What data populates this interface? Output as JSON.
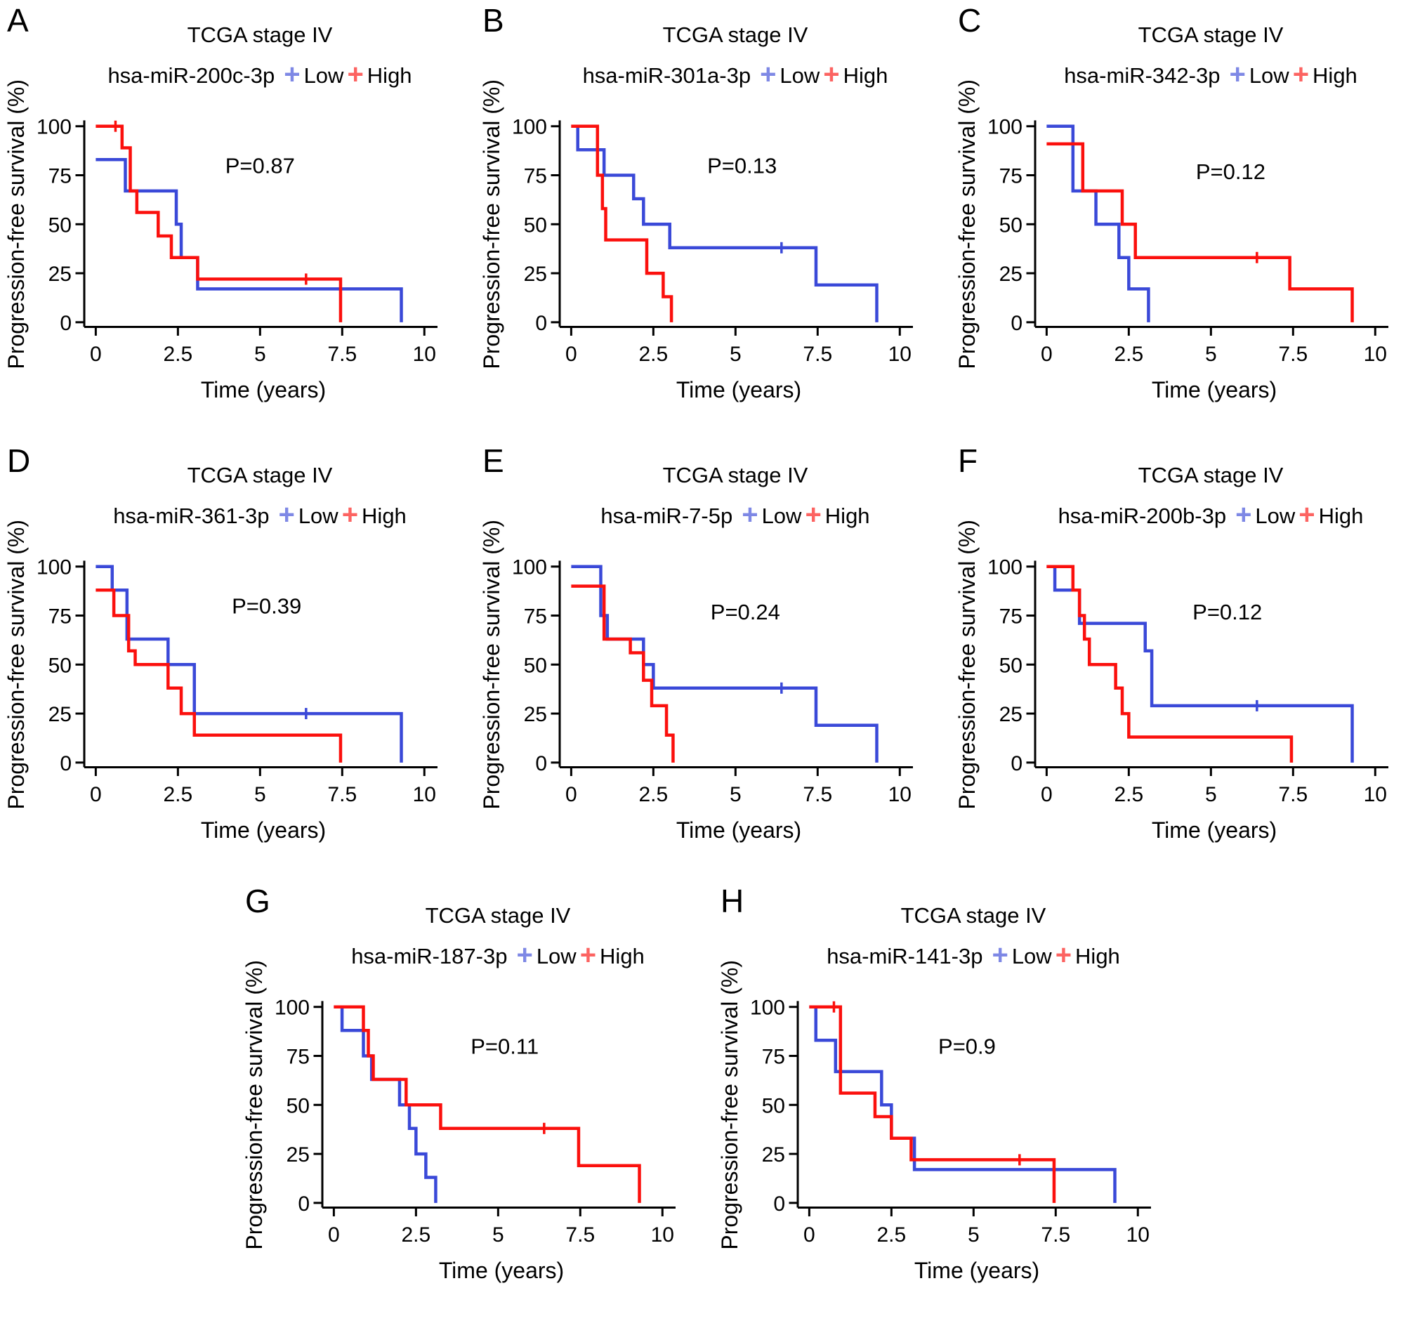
{
  "figure": {
    "ylabel": "Progression-free survival (%)",
    "xlabel": "Time (years)",
    "legend": {
      "low_label": "Low",
      "high_label": "High",
      "marker_glyph": "+",
      "position": "top"
    },
    "colors": {
      "low": "#3a49d8",
      "high": "#fb100d",
      "axis": "#000000"
    },
    "x_ticks": [
      "0",
      "2.5",
      "5",
      "7.5",
      "10"
    ],
    "y_ticks": [
      "0",
      "25",
      "50",
      "75",
      "100"
    ],
    "x_range": [
      0,
      10
    ],
    "y_range": [
      0,
      100
    ],
    "grid": false
  },
  "chart_data": [
    {
      "panel": "A",
      "type": "line",
      "title": "TCGA stage IV",
      "gene": "hsa-miR-200c-3p",
      "p_label": "P=0.87",
      "p_pos": [
        5.0,
        76
      ],
      "series": [
        {
          "name": "Low",
          "color_key": "low",
          "steps": [
            [
              0,
              83
            ],
            [
              0.9,
              67
            ],
            [
              2.45,
              50
            ],
            [
              2.6,
              33
            ],
            [
              3.1,
              17
            ],
            [
              9.3,
              0
            ]
          ],
          "censors": []
        },
        {
          "name": "High",
          "color_key": "high",
          "steps": [
            [
              0,
              100
            ],
            [
              0.8,
              89
            ],
            [
              1.05,
              67
            ],
            [
              1.25,
              56
            ],
            [
              1.9,
              44
            ],
            [
              2.3,
              33
            ],
            [
              3.1,
              22
            ],
            [
              7.45,
              0
            ]
          ],
          "censors": [
            [
              0.6,
              100
            ],
            [
              6.4,
              22
            ]
          ]
        }
      ]
    },
    {
      "panel": "B",
      "type": "line",
      "title": "TCGA stage IV",
      "gene": "hsa-miR-301a-3p",
      "p_label": "P=0.13",
      "p_pos": [
        5.2,
        76
      ],
      "series": [
        {
          "name": "Low",
          "color_key": "low",
          "steps": [
            [
              0,
              100
            ],
            [
              0.2,
              88
            ],
            [
              1.0,
              75
            ],
            [
              1.9,
              63
            ],
            [
              2.2,
              50
            ],
            [
              3.0,
              38
            ],
            [
              7.45,
              19
            ],
            [
              9.3,
              0
            ]
          ],
          "censors": [
            [
              6.4,
              38
            ]
          ]
        },
        {
          "name": "High",
          "color_key": "high",
          "steps": [
            [
              0,
              100
            ],
            [
              0.8,
              75
            ],
            [
              0.95,
              58
            ],
            [
              1.05,
              42
            ],
            [
              2.3,
              25
            ],
            [
              2.8,
              13
            ],
            [
              3.05,
              0
            ]
          ],
          "censors": []
        }
      ]
    },
    {
      "panel": "C",
      "type": "line",
      "title": "TCGA stage IV",
      "gene": "hsa-miR-342-3p",
      "p_label": "P=0.12",
      "p_pos": [
        5.6,
        73
      ],
      "series": [
        {
          "name": "Low",
          "color_key": "low",
          "steps": [
            [
              0,
              100
            ],
            [
              0.8,
              67
            ],
            [
              1.5,
              50
            ],
            [
              2.2,
              33
            ],
            [
              2.5,
              17
            ],
            [
              3.1,
              0
            ]
          ],
          "censors": []
        },
        {
          "name": "High",
          "color_key": "high",
          "steps": [
            [
              0,
              91
            ],
            [
              1.1,
              67
            ],
            [
              2.3,
              50
            ],
            [
              2.7,
              33
            ],
            [
              7.4,
              17
            ],
            [
              9.3,
              0
            ]
          ],
          "censors": [
            [
              6.4,
              33
            ]
          ]
        }
      ]
    },
    {
      "panel": "D",
      "type": "line",
      "title": "TCGA stage IV",
      "gene": "hsa-miR-361-3p",
      "p_label": "P=0.39",
      "p_pos": [
        5.2,
        76
      ],
      "series": [
        {
          "name": "Low",
          "color_key": "low",
          "steps": [
            [
              0,
              100
            ],
            [
              0.5,
              88
            ],
            [
              0.95,
              63
            ],
            [
              2.2,
              50
            ],
            [
              3.0,
              25
            ],
            [
              9.3,
              0
            ]
          ],
          "censors": [
            [
              6.4,
              25
            ]
          ]
        },
        {
          "name": "High",
          "color_key": "high",
          "steps": [
            [
              0,
              88
            ],
            [
              0.55,
              75
            ],
            [
              1.0,
              57
            ],
            [
              1.2,
              50
            ],
            [
              2.2,
              38
            ],
            [
              2.6,
              25
            ],
            [
              3.0,
              14
            ],
            [
              7.45,
              0
            ]
          ],
          "censors": []
        }
      ]
    },
    {
      "panel": "E",
      "type": "line",
      "title": "TCGA stage IV",
      "gene": "hsa-miR-7-5p",
      "p_label": "P=0.24",
      "p_pos": [
        5.3,
        73
      ],
      "series": [
        {
          "name": "Low",
          "color_key": "low",
          "steps": [
            [
              0,
              100
            ],
            [
              0.9,
              75
            ],
            [
              1.1,
              63
            ],
            [
              2.2,
              50
            ],
            [
              2.5,
              38
            ],
            [
              7.45,
              19
            ],
            [
              9.3,
              0
            ]
          ],
          "censors": [
            [
              6.4,
              38
            ]
          ]
        },
        {
          "name": "High",
          "color_key": "high",
          "steps": [
            [
              0,
              90
            ],
            [
              1.0,
              63
            ],
            [
              1.8,
              56
            ],
            [
              2.2,
              42
            ],
            [
              2.45,
              29
            ],
            [
              2.9,
              14
            ],
            [
              3.1,
              0
            ]
          ],
          "censors": []
        }
      ]
    },
    {
      "panel": "F",
      "type": "line",
      "title": "TCGA stage IV",
      "gene": "hsa-miR-200b-3p",
      "p_label": "P=0.12",
      "p_pos": [
        5.5,
        73
      ],
      "series": [
        {
          "name": "Low",
          "color_key": "low",
          "steps": [
            [
              0,
              100
            ],
            [
              0.25,
              88
            ],
            [
              1.0,
              71
            ],
            [
              3.0,
              57
            ],
            [
              3.2,
              29
            ],
            [
              9.3,
              0
            ]
          ],
          "censors": [
            [
              6.4,
              29
            ]
          ]
        },
        {
          "name": "High",
          "color_key": "high",
          "steps": [
            [
              0,
              100
            ],
            [
              0.8,
              88
            ],
            [
              1.0,
              75
            ],
            [
              1.15,
              63
            ],
            [
              1.3,
              50
            ],
            [
              2.1,
              38
            ],
            [
              2.3,
              25
            ],
            [
              2.5,
              13
            ],
            [
              7.45,
              0
            ]
          ],
          "censors": []
        }
      ]
    },
    {
      "panel": "G",
      "type": "line",
      "title": "TCGA stage IV",
      "gene": "hsa-miR-187-3p",
      "p_label": "P=0.11",
      "p_pos": [
        5.2,
        76
      ],
      "series": [
        {
          "name": "Low",
          "color_key": "low",
          "steps": [
            [
              0,
              100
            ],
            [
              0.25,
              88
            ],
            [
              0.9,
              75
            ],
            [
              1.15,
              63
            ],
            [
              2.0,
              50
            ],
            [
              2.3,
              38
            ],
            [
              2.5,
              25
            ],
            [
              2.8,
              13
            ],
            [
              3.1,
              0
            ]
          ],
          "censors": []
        },
        {
          "name": "High",
          "color_key": "high",
          "steps": [
            [
              0,
              100
            ],
            [
              0.9,
              88
            ],
            [
              1.05,
              75
            ],
            [
              1.2,
              63
            ],
            [
              2.2,
              50
            ],
            [
              3.25,
              38
            ],
            [
              7.45,
              19
            ],
            [
              9.3,
              0
            ]
          ],
          "censors": [
            [
              6.4,
              38
            ]
          ]
        }
      ]
    },
    {
      "panel": "H",
      "type": "line",
      "title": "TCGA stage IV",
      "gene": "hsa-miR-141-3p",
      "p_label": "P=0.9",
      "p_pos": [
        4.8,
        76
      ],
      "series": [
        {
          "name": "Low",
          "color_key": "low",
          "steps": [
            [
              0,
              100
            ],
            [
              0.2,
              83
            ],
            [
              0.8,
              67
            ],
            [
              2.2,
              50
            ],
            [
              2.5,
              33
            ],
            [
              3.2,
              17
            ],
            [
              9.3,
              0
            ]
          ],
          "censors": []
        },
        {
          "name": "High",
          "color_key": "high",
          "steps": [
            [
              0,
              100
            ],
            [
              0.95,
              56
            ],
            [
              2.0,
              44
            ],
            [
              2.5,
              33
            ],
            [
              3.1,
              22
            ],
            [
              7.45,
              0
            ]
          ],
          "censors": [
            [
              0.75,
              100
            ],
            [
              6.4,
              22
            ]
          ]
        }
      ]
    }
  ]
}
